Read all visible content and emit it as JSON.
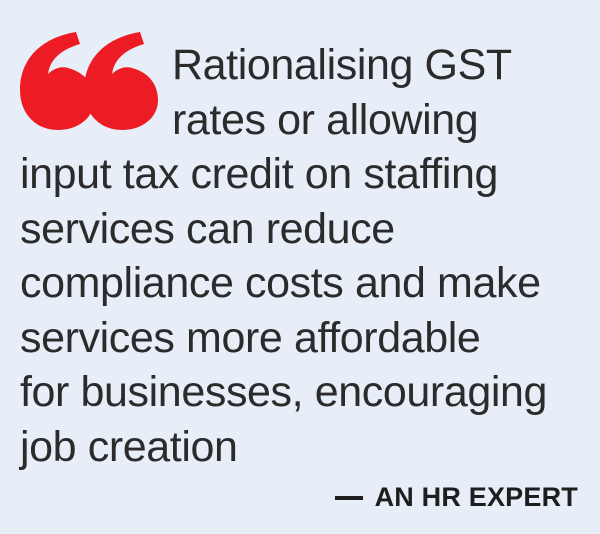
{
  "quote": {
    "lines": [
      "Rationalising GST",
      "rates or allowing",
      "input tax credit on staffing",
      "services can reduce",
      "compliance costs and make",
      "services more affordable",
      "for businesses, encouraging",
      "job creation"
    ]
  },
  "attribution": {
    "text": "AN HR EXPERT"
  },
  "colors": {
    "background": "#e7eef7",
    "quote_mark": "#ed1c24",
    "text": "#2b2b2b"
  },
  "icons": {
    "quote_mark": "double-quote-icon"
  }
}
